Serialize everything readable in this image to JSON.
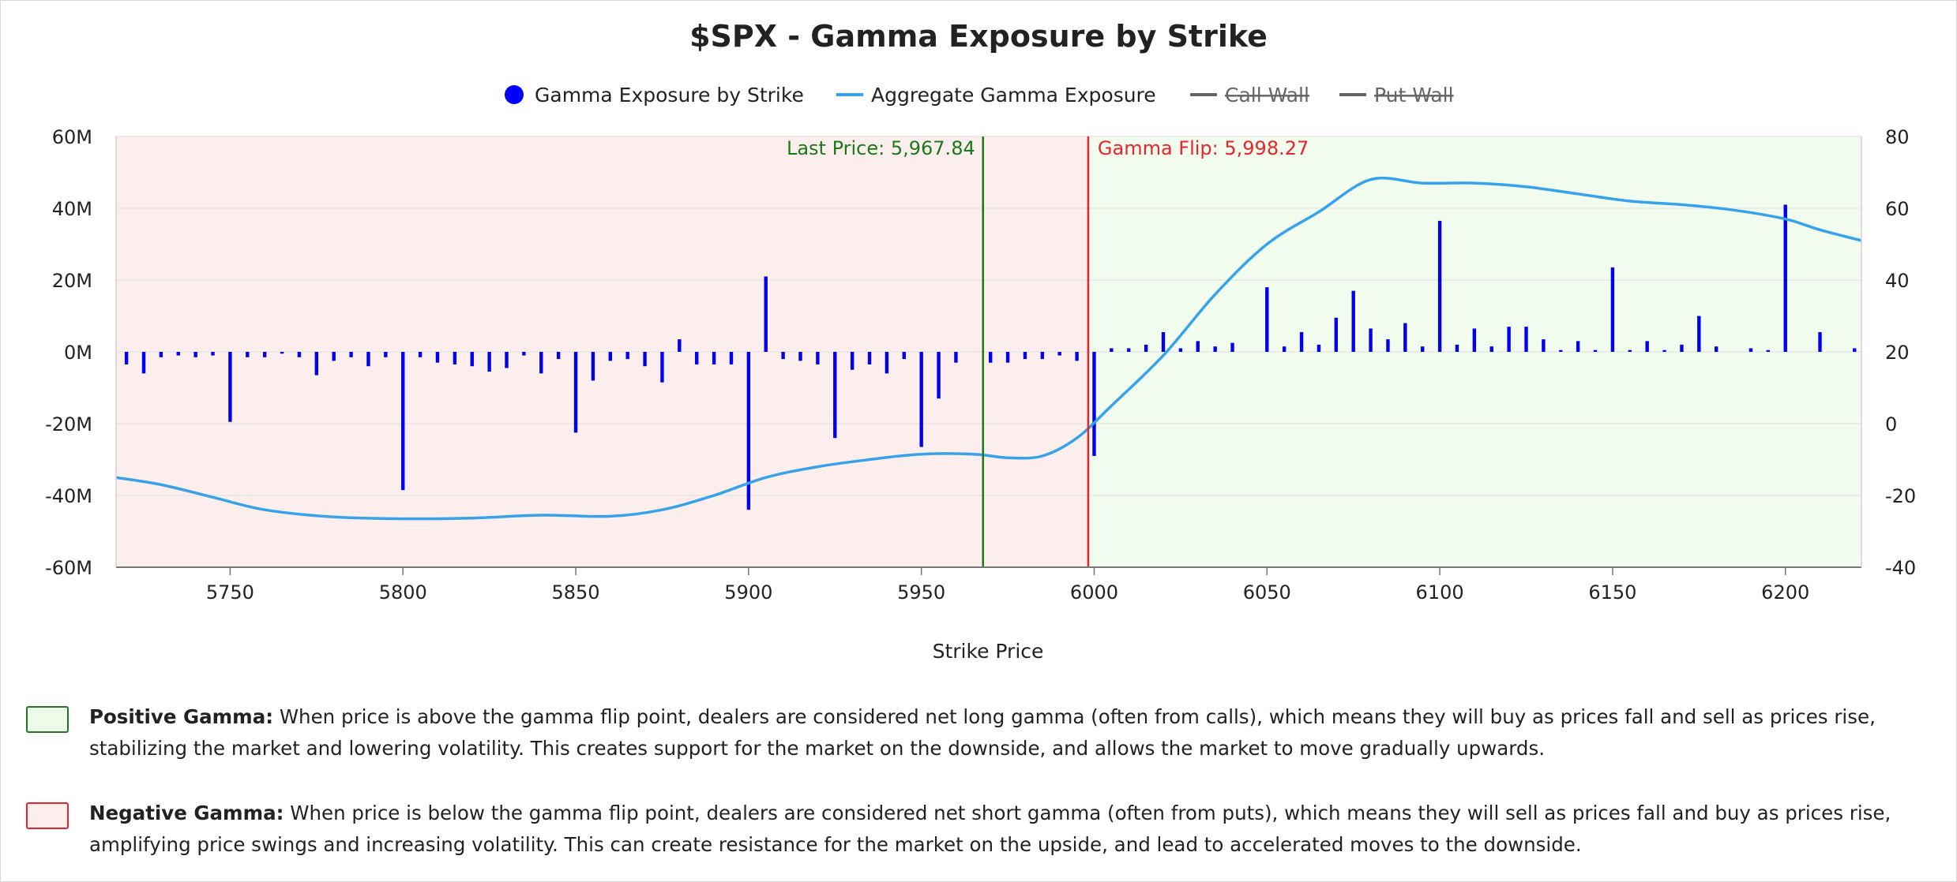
{
  "chart_data": {
    "type": "bar+line",
    "title": "$SPX - Gamma Exposure by Strike",
    "xlabel": "Strike Price",
    "ylabel_left": "",
    "ylabel_right": "",
    "xlim": [
      5717,
      6222
    ],
    "ylim_left": [
      -60,
      60
    ],
    "ylim_right": [
      -40,
      80
    ],
    "x_ticks": [
      5750,
      5800,
      5850,
      5900,
      5950,
      6000,
      6050,
      6100,
      6150,
      6200
    ],
    "y_left_ticks": [
      "60M",
      "40M",
      "20M",
      "0M",
      "-20M",
      "-40M",
      "-60M"
    ],
    "y_left_tick_values": [
      60,
      40,
      20,
      0,
      -20,
      -40,
      -60
    ],
    "y_right_ticks": [
      "80",
      "60",
      "40",
      "20",
      "0",
      "-20",
      "-40"
    ],
    "y_right_tick_values": [
      80,
      60,
      40,
      20,
      0,
      -20,
      -40
    ],
    "grid": true,
    "legend_position": "top-center",
    "legend": [
      {
        "label": "Gamma Exposure by Strike",
        "symbol": "dot",
        "color": "#0000ff",
        "hidden": false
      },
      {
        "label": "Aggregate Gamma Exposure",
        "symbol": "line",
        "color": "#36a2eb",
        "hidden": false
      },
      {
        "label": "Call Wall",
        "symbol": "line",
        "color": "#666666",
        "hidden": true
      },
      {
        "label": "Put Wall",
        "symbol": "line",
        "color": "#666666",
        "hidden": true
      }
    ],
    "regions": [
      {
        "name": "Negative Gamma",
        "from": 5717,
        "to": 5998.27,
        "color": "#fdeeee"
      },
      {
        "name": "Positive Gamma",
        "from": 5998.27,
        "to": 6222,
        "color": "#f2fcee"
      }
    ],
    "vlines": [
      {
        "name": "Last Price",
        "label": "Last Price: 5,967.84",
        "x": 5967.84,
        "color": "#1a7a1a"
      },
      {
        "name": "Gamma Flip",
        "label": "Gamma Flip: 5,998.27",
        "x": 5998.27,
        "color": "#e8242b"
      }
    ],
    "series": [
      {
        "name": "Gamma Exposure by Strike",
        "axis": "left",
        "unit": "M",
        "color": "#0000ee",
        "x": [
          5720,
          5725,
          5730,
          5735,
          5740,
          5745,
          5750,
          5755,
          5760,
          5765,
          5770,
          5775,
          5780,
          5785,
          5790,
          5795,
          5800,
          5805,
          5810,
          5815,
          5820,
          5825,
          5830,
          5835,
          5840,
          5845,
          5850,
          5855,
          5860,
          5865,
          5870,
          5875,
          5880,
          5885,
          5890,
          5895,
          5900,
          5905,
          5910,
          5915,
          5920,
          5925,
          5930,
          5935,
          5940,
          5945,
          5950,
          5955,
          5960,
          5970,
          5975,
          5980,
          5985,
          5990,
          5995,
          6000,
          6005,
          6010,
          6015,
          6020,
          6025,
          6030,
          6035,
          6040,
          6050,
          6055,
          6060,
          6065,
          6070,
          6075,
          6080,
          6085,
          6090,
          6095,
          6100,
          6105,
          6110,
          6115,
          6120,
          6125,
          6130,
          6135,
          6140,
          6145,
          6150,
          6155,
          6160,
          6165,
          6170,
          6175,
          6180,
          6190,
          6195,
          6200,
          6210,
          6220
        ],
        "values": [
          -3.5,
          -6,
          -1.5,
          -1,
          -1.5,
          -1,
          -19.5,
          -1.5,
          -1.5,
          -0.5,
          -1.5,
          -6.5,
          -2.5,
          -1.5,
          -4,
          -1.5,
          -38.5,
          -1.5,
          -3,
          -3.5,
          -4,
          -5.5,
          -4.5,
          -1,
          -6,
          -2,
          -22.5,
          -8,
          -2.5,
          -2,
          -4,
          -8.5,
          3.5,
          -3.5,
          -3.5,
          -3.5,
          -44,
          21,
          -2,
          -2.5,
          -3.5,
          -24,
          -5,
          -3.5,
          -6,
          -2,
          -26.5,
          -13,
          -3,
          -3,
          -3,
          -2,
          -2,
          -1,
          -2.5,
          -29,
          1,
          1,
          2,
          5.5,
          1,
          3,
          1.5,
          2.5,
          18,
          1.5,
          5.5,
          2,
          9.5,
          17,
          6.5,
          3.5,
          8,
          1.5,
          36.5,
          2,
          6.5,
          1.5,
          7,
          7,
          3.5,
          0.5,
          3,
          0.5,
          23.5,
          0.5,
          3,
          0.5,
          2,
          10,
          1.5,
          1,
          0.5,
          41,
          5.5,
          1
        ]
      },
      {
        "name": "Aggregate Gamma Exposure",
        "axis": "right",
        "color": "#36a2eb",
        "x": [
          5717,
          5730,
          5745,
          5760,
          5780,
          5800,
          5820,
          5840,
          5860,
          5875,
          5890,
          5905,
          5920,
          5935,
          5950,
          5965,
          5975,
          5985,
          5995,
          6005,
          6020,
          6035,
          6050,
          6065,
          6080,
          6095,
          6110,
          6125,
          6140,
          6155,
          6170,
          6185,
          6200,
          6210,
          6222
        ],
        "values": [
          -15,
          -17,
          -20.5,
          -24,
          -26,
          -26.5,
          -26.3,
          -25.5,
          -25.8,
          -24,
          -20,
          -15,
          -12,
          -10,
          -8.5,
          -8.5,
          -9.5,
          -9,
          -4,
          5,
          19,
          36,
          50,
          59,
          68,
          67,
          67,
          66,
          64,
          62,
          61,
          59.5,
          57,
          54,
          51
        ]
      }
    ]
  },
  "notes": {
    "positive": {
      "title": "Positive Gamma:",
      "text": " When price is above the gamma flip point, dealers are considered net long gamma (often from calls), which means they will buy as prices fall and sell as prices rise, stabilizing the market and lowering volatility. This creates support for the market on the downside, and allows the market to move gradually upwards.",
      "swatch_fill": "#edfcea",
      "swatch_border": "#1f7a1f"
    },
    "negative": {
      "title": "Negative Gamma:",
      "text": " When price is below the gamma flip point, dealers are considered net short gamma (often from puts), which means they will sell as prices fall and buy as prices rise, amplifying price swings and increasing volatility. This can create resistance for the market on the upside, and lead to accelerated moves to the downside.",
      "swatch_fill": "#fdeeee",
      "swatch_border": "#e8242b"
    }
  }
}
